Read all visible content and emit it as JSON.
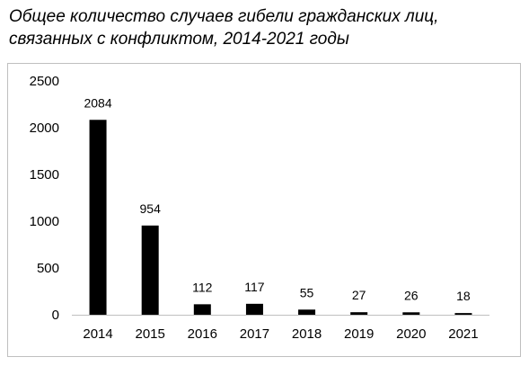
{
  "title": "Общее количество случаев гибели гражданских лиц, связанных с конфликтом, 2014-2021 годы",
  "chart_data": {
    "type": "bar",
    "title": "Общее количество случаев гибели гражданских лиц, связанных с конфликтом, 2014-2021 годы",
    "categories": [
      "2014",
      "2015",
      "2016",
      "2017",
      "2018",
      "2019",
      "2020",
      "2021"
    ],
    "values": [
      2084,
      954,
      112,
      117,
      55,
      27,
      26,
      18
    ],
    "data_labels": [
      "2084",
      "954",
      "112",
      "117",
      "55",
      "27",
      "26",
      "18"
    ],
    "ylim": [
      0,
      2500
    ],
    "yticks": [
      "0",
      "500",
      "1000",
      "1500",
      "2000",
      "2500"
    ],
    "grid": false,
    "legend": "none",
    "xlabel": "",
    "ylabel": "",
    "bar_color": "#000000"
  }
}
